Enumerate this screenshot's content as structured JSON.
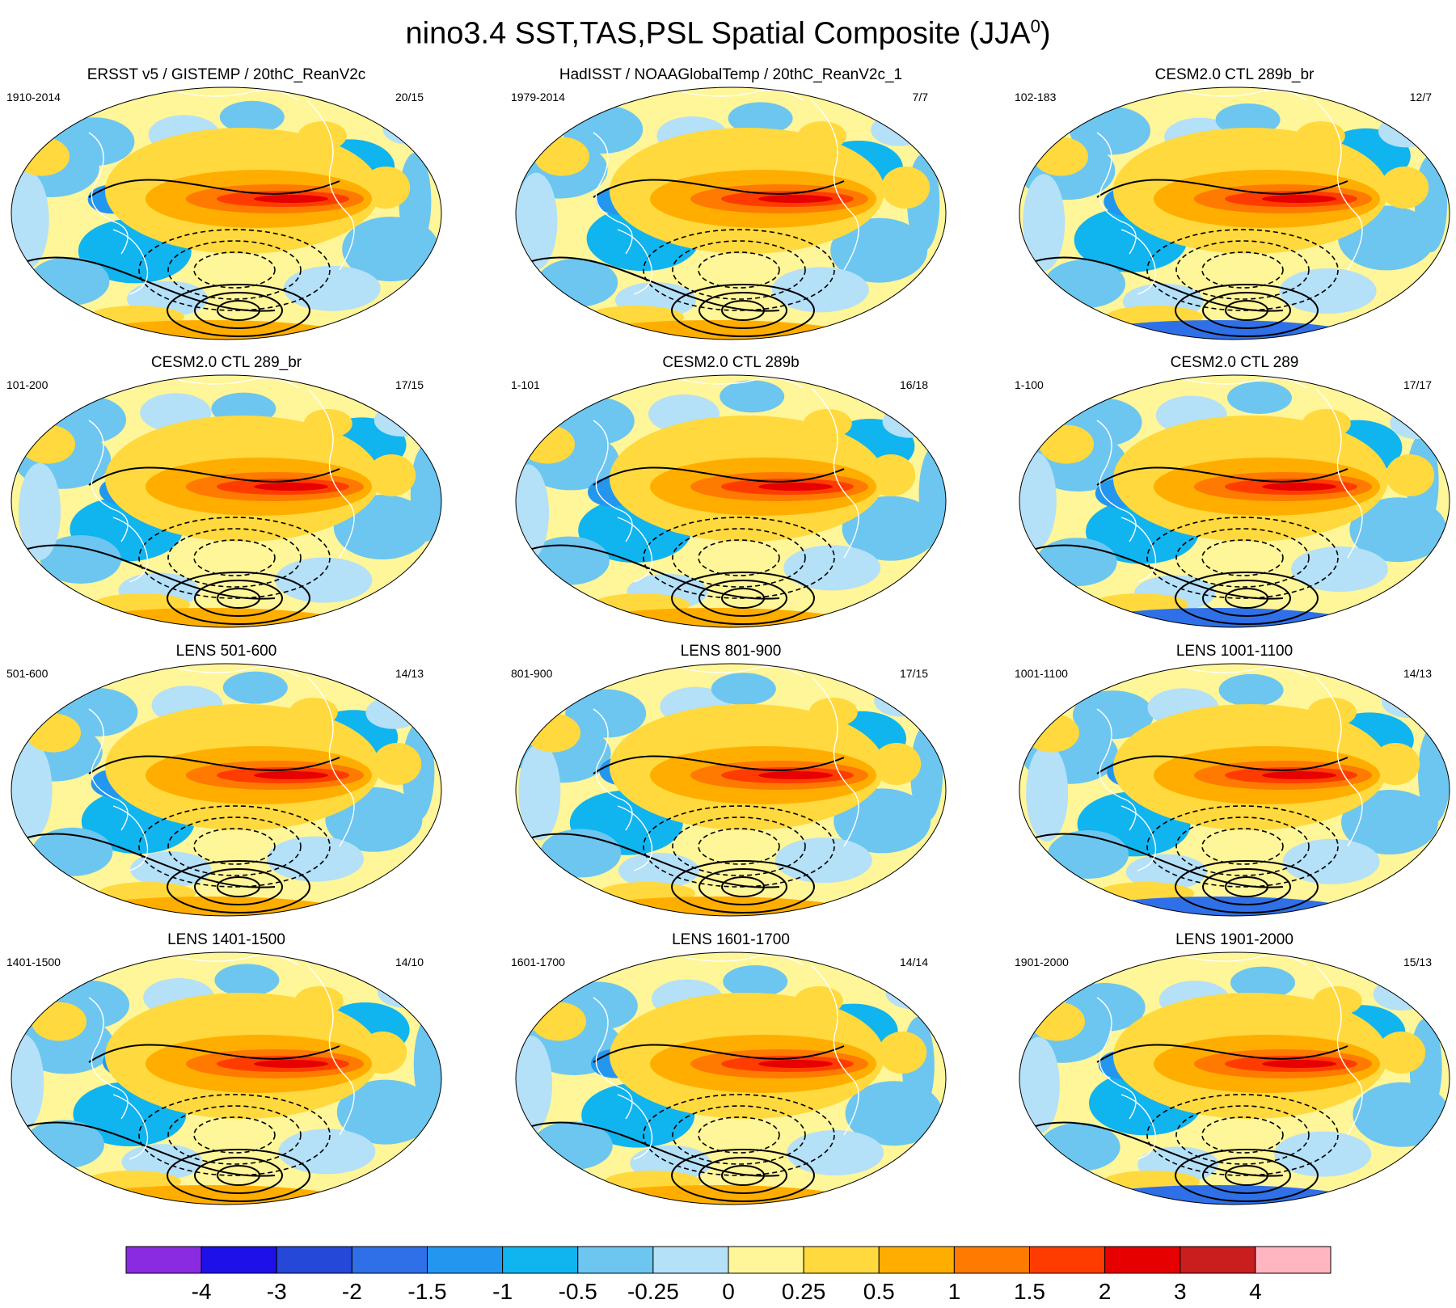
{
  "figure": {
    "title_main": "nino3.4 SST,TAS,PSL Spatial Composite (JJA",
    "title_sup": "0",
    "title_close": ")"
  },
  "colors": {
    "land_coast": "#ffffff",
    "contour": "#000000",
    "colorbar_fills": [
      "#8a2be2",
      "#1e10e8",
      "#2648d8",
      "#2f70e8",
      "#2396f0",
      "#10b4ef",
      "#6cc6f0",
      "#b4e0f8",
      "#fff599",
      "#ffd93d",
      "#ffae00",
      "#ff7a00",
      "#ff3c00",
      "#e60000",
      "#c81e1e",
      "#ffb6c1"
    ]
  },
  "chart_data": {
    "type": "map-composite",
    "title": "nino3.4 SST,TAS,PSL Spatial Composite (JJA0)",
    "variables": [
      "SST",
      "TAS",
      "PSL"
    ],
    "colorbar": {
      "levels": [
        "-4",
        "-3",
        "-2",
        "-1.5",
        "-1",
        "-0.5",
        "-0.25",
        "0",
        "0.25",
        "0.5",
        "1",
        "1.5",
        "2",
        "3",
        "4"
      ],
      "n_bins": 16,
      "orientation": "horizontal",
      "placement": "bottom"
    },
    "panels": [
      {
        "title": "ERSST v5 / GISTEMP / 20thC_ReanV2c",
        "years": "1910-2014",
        "count": "20/15"
      },
      {
        "title": "HadISST / NOAAGlobalTemp / 20thC_ReanV2c_1",
        "years": "1979-2014",
        "count": "7/7"
      },
      {
        "title": "CESM2.0 CTL 289b_br",
        "years": "102-183",
        "count": "12/7"
      },
      {
        "title": "CESM2.0 CTL 289_br",
        "years": "101-200",
        "count": "17/15"
      },
      {
        "title": "CESM2.0 CTL 289b",
        "years": "1-101",
        "count": "16/18"
      },
      {
        "title": "CESM2.0 CTL 289",
        "years": "1-100",
        "count": "17/17"
      },
      {
        "title": "LENS 501-600",
        "years": "501-600",
        "count": "14/13"
      },
      {
        "title": "LENS 801-900",
        "years": "801-900",
        "count": "17/15"
      },
      {
        "title": "LENS 1001-1100",
        "years": "1001-1100",
        "count": "14/13"
      },
      {
        "title": "LENS 1401-1500",
        "years": "1401-1500",
        "count": "14/10"
      },
      {
        "title": "LENS 1601-1700",
        "years": "1601-1700",
        "count": "14/14"
      },
      {
        "title": "LENS 1901-2000",
        "years": "1901-2000",
        "count": "15/13"
      }
    ]
  }
}
